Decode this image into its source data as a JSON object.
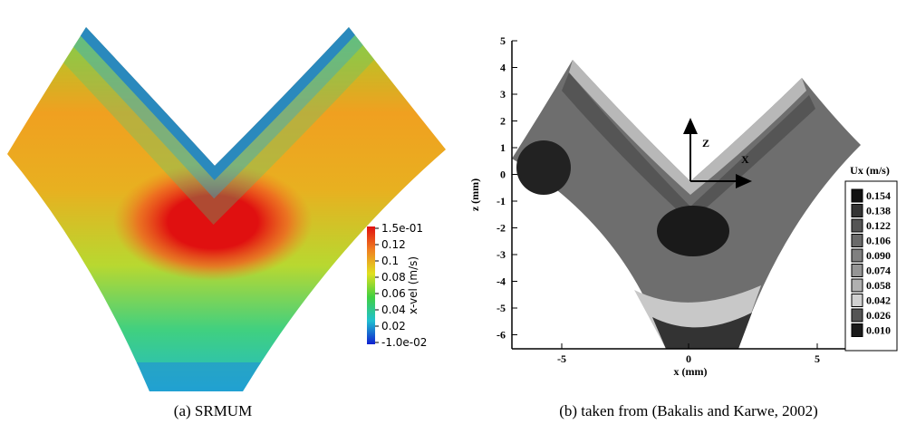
{
  "panels": [
    {
      "caption": "(a) SRMUM",
      "colorbar": {
        "label": "x-vel (m/s)",
        "ticks": [
          "1.5e-01",
          "0.12",
          "0.1",
          "0.08",
          "0.06",
          "0.04",
          "0.02",
          "-1.0e-02"
        ]
      }
    },
    {
      "caption": "(b) taken from (Bakalis and Karwe, 2002)",
      "axes": {
        "x_label": "x (mm)",
        "y_label": "z (mm)",
        "x_ticks": [
          "-5",
          "0",
          "5"
        ],
        "y_ticks": [
          "5",
          "4",
          "3",
          "2",
          "1",
          "0",
          "-1",
          "-2",
          "-3",
          "-4",
          "-5",
          "-6"
        ],
        "arrow_labels": [
          "Z",
          "X"
        ]
      },
      "legend": {
        "title": "Ux (m/s)",
        "levels": [
          "0.154",
          "0.138",
          "0.122",
          "0.106",
          "0.090",
          "0.074",
          "0.058",
          "0.042",
          "0.026",
          "0.010"
        ]
      }
    }
  ]
}
